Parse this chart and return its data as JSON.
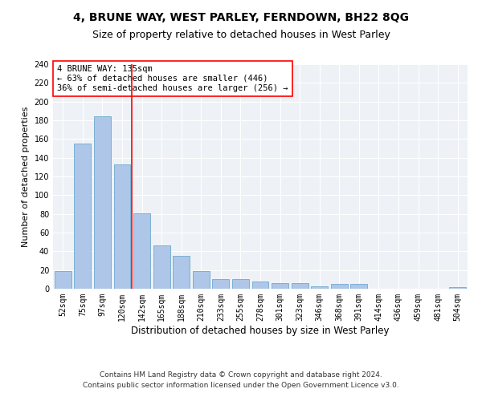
{
  "title": "4, BRUNE WAY, WEST PARLEY, FERNDOWN, BH22 8QG",
  "subtitle": "Size of property relative to detached houses in West Parley",
  "xlabel": "Distribution of detached houses by size in West Parley",
  "ylabel": "Number of detached properties",
  "categories": [
    "52sqm",
    "75sqm",
    "97sqm",
    "120sqm",
    "142sqm",
    "165sqm",
    "188sqm",
    "210sqm",
    "233sqm",
    "255sqm",
    "278sqm",
    "301sqm",
    "323sqm",
    "346sqm",
    "368sqm",
    "391sqm",
    "414sqm",
    "436sqm",
    "459sqm",
    "481sqm",
    "504sqm"
  ],
  "values": [
    19,
    155,
    184,
    133,
    81,
    46,
    35,
    19,
    10,
    10,
    8,
    6,
    6,
    3,
    5,
    5,
    0,
    0,
    0,
    0,
    2
  ],
  "bar_color": "#aec6e8",
  "bar_edge_color": "#5a9fc8",
  "vline_x_idx": 4,
  "vline_color": "red",
  "annotation_text": "4 BRUNE WAY: 135sqm\n← 63% of detached houses are smaller (446)\n36% of semi-detached houses are larger (256) →",
  "annotation_box_color": "white",
  "annotation_box_edge_color": "red",
  "ylim": [
    0,
    240
  ],
  "yticks": [
    0,
    20,
    40,
    60,
    80,
    100,
    120,
    140,
    160,
    180,
    200,
    220,
    240
  ],
  "footer_line1": "Contains HM Land Registry data © Crown copyright and database right 2024.",
  "footer_line2": "Contains public sector information licensed under the Open Government Licence v3.0.",
  "background_color": "#eef2f7",
  "grid_color": "white",
  "title_fontsize": 10,
  "subtitle_fontsize": 9,
  "xlabel_fontsize": 8.5,
  "ylabel_fontsize": 8,
  "tick_fontsize": 7,
  "annotation_fontsize": 7.5,
  "footer_fontsize": 6.5
}
